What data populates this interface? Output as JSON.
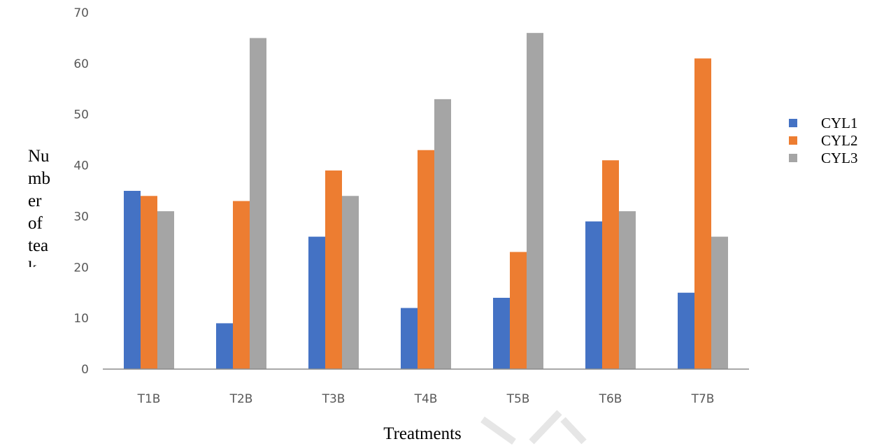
{
  "chart_data": {
    "type": "bar",
    "categories": [
      "T1B",
      "T2B",
      "T3B",
      "T4B",
      "T5B",
      "T6B",
      "T7B"
    ],
    "series": [
      {
        "name": "CYL1",
        "color": "#4472C4",
        "values": [
          35,
          9,
          26,
          12,
          14,
          29,
          15
        ]
      },
      {
        "name": "CYL2",
        "color": "#ED7D31",
        "values": [
          34,
          33,
          39,
          43,
          23,
          41,
          61
        ]
      },
      {
        "name": "CYL3",
        "color": "#A5A5A5",
        "values": [
          31,
          65,
          34,
          53,
          66,
          31,
          26
        ]
      }
    ],
    "yticks": [
      0,
      10,
      20,
      30,
      40,
      50,
      60,
      70
    ],
    "ylim": [
      0,
      70
    ],
    "xlabel": "Treatments",
    "ylabel_lines": [
      "Nu",
      "mb",
      "er",
      "of",
      "tea",
      "k"
    ],
    "legend_position": "right",
    "grid": false
  }
}
